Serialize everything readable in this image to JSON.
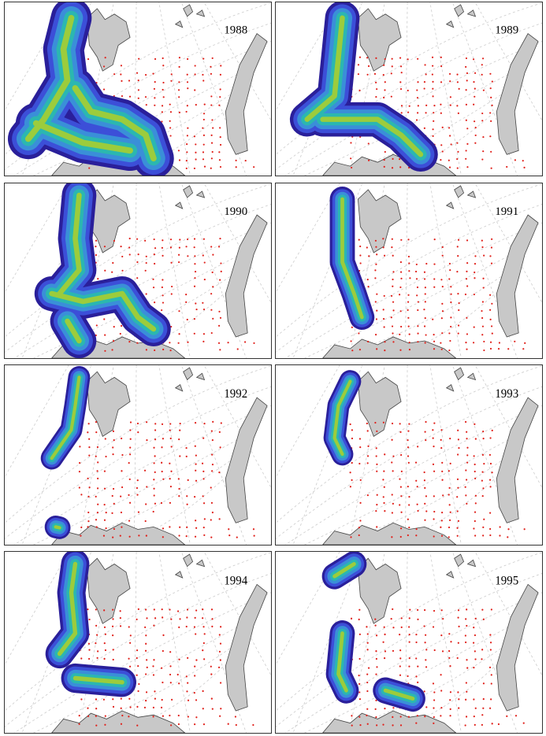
{
  "panels": [
    {
      "year": "1988"
    },
    {
      "year": "1989"
    },
    {
      "year": "1990"
    },
    {
      "year": "1991"
    },
    {
      "year": "1992"
    },
    {
      "year": "1993"
    },
    {
      "year": "1994"
    },
    {
      "year": "1995"
    }
  ]
}
